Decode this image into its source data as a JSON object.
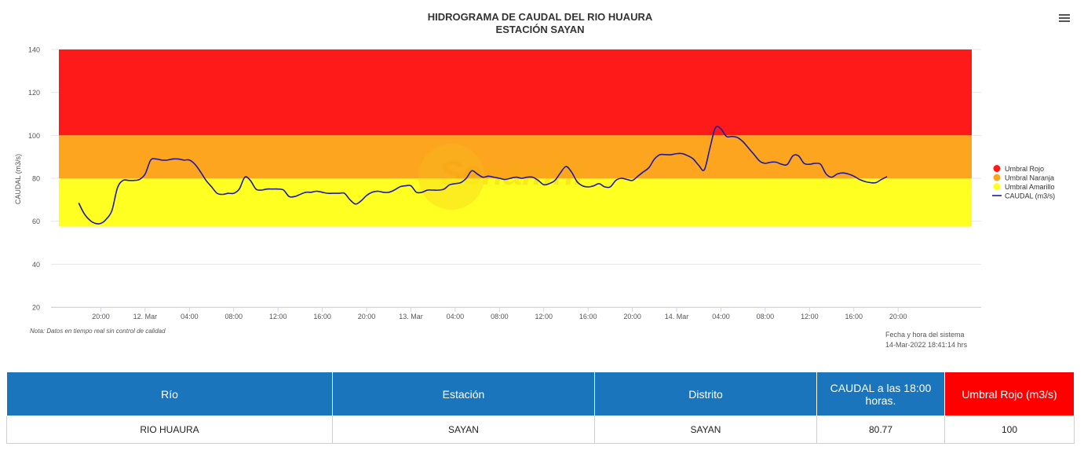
{
  "chart_data": {
    "type": "line",
    "title": "HIDROGRAMA DE CAUDAL DEL RIO HUAURA",
    "subtitle": "ESTACIÓN SAYAN",
    "ylabel": "CAUDAL (m3/s)",
    "ylim": [
      20,
      140
    ],
    "yticks": [
      "20",
      "40",
      "60",
      "80",
      "100",
      "120",
      "140"
    ],
    "xticks": [
      {
        "t": 20,
        "label": "20:00"
      },
      {
        "t": 24,
        "label": "12. Mar"
      },
      {
        "t": 28,
        "label": "04:00"
      },
      {
        "t": 32,
        "label": "08:00"
      },
      {
        "t": 36,
        "label": "12:00"
      },
      {
        "t": 40,
        "label": "16:00"
      },
      {
        "t": 44,
        "label": "20:00"
      },
      {
        "t": 48,
        "label": "13. Mar"
      },
      {
        "t": 52,
        "label": "04:00"
      },
      {
        "t": 56,
        "label": "08:00"
      },
      {
        "t": 60,
        "label": "12:00"
      },
      {
        "t": 64,
        "label": "16:00"
      },
      {
        "t": 68,
        "label": "20:00"
      },
      {
        "t": 72,
        "label": "14. Mar"
      },
      {
        "t": 76,
        "label": "04:00"
      },
      {
        "t": 80,
        "label": "08:00"
      },
      {
        "t": 84,
        "label": "12:00"
      },
      {
        "t": 88,
        "label": "16:00"
      },
      {
        "t": 92,
        "label": "20:00"
      }
    ],
    "x_axis_note": "t = hours since 11 Mar 00:00",
    "bands": [
      {
        "name": "Umbral Rojo",
        "color": "#ff1a1a",
        "from": 100,
        "to": 140
      },
      {
        "name": "Umbral Naranja",
        "color": "#fda51f",
        "from": 80,
        "to": 100
      },
      {
        "name": "Umbral Amarillo",
        "color": "#ffff21",
        "from": 57.5,
        "to": 80
      }
    ],
    "series": [
      {
        "name": "CAUDAL (m3/s)",
        "color": "#1a1aa6",
        "points": [
          [
            18,
            68.5
          ],
          [
            18.5,
            63.5
          ],
          [
            19,
            60.5
          ],
          [
            19.5,
            59
          ],
          [
            20,
            59
          ],
          [
            20.5,
            61
          ],
          [
            21,
            65
          ],
          [
            21.5,
            75.5
          ],
          [
            22,
            79
          ],
          [
            22.5,
            79
          ],
          [
            23,
            79
          ],
          [
            23.5,
            79.5
          ],
          [
            24,
            82
          ],
          [
            24.5,
            88.5
          ],
          [
            25,
            89
          ],
          [
            25.5,
            88.5
          ],
          [
            26,
            88.5
          ],
          [
            26.5,
            89
          ],
          [
            27,
            89
          ],
          [
            27.5,
            88.5
          ],
          [
            28,
            88.5
          ],
          [
            28.5,
            86.5
          ],
          [
            29,
            83
          ],
          [
            29.5,
            79
          ],
          [
            30,
            76
          ],
          [
            30.5,
            73
          ],
          [
            31,
            72.5
          ],
          [
            31.5,
            73
          ],
          [
            32,
            73
          ],
          [
            32.5,
            75
          ],
          [
            33,
            80.5
          ],
          [
            33.5,
            79
          ],
          [
            34,
            75
          ],
          [
            34.5,
            74.5
          ],
          [
            35,
            75
          ],
          [
            35.5,
            75
          ],
          [
            36,
            75
          ],
          [
            36.5,
            74.5
          ],
          [
            37,
            71.5
          ],
          [
            37.5,
            71.5
          ],
          [
            38,
            72.5
          ],
          [
            38.5,
            73.5
          ],
          [
            39,
            73.5
          ],
          [
            39.5,
            74
          ],
          [
            40,
            73.5
          ],
          [
            40.5,
            73
          ],
          [
            41,
            73
          ],
          [
            41.5,
            73
          ],
          [
            42,
            73
          ],
          [
            42.5,
            70
          ],
          [
            43,
            68
          ],
          [
            43.5,
            69.5
          ],
          [
            44,
            72
          ],
          [
            44.5,
            73.5
          ],
          [
            45,
            74
          ],
          [
            45.5,
            73.5
          ],
          [
            46,
            73.5
          ],
          [
            46.5,
            74.5
          ],
          [
            47,
            76
          ],
          [
            47.5,
            76.5
          ],
          [
            48,
            76.5
          ],
          [
            48.5,
            73.5
          ],
          [
            49,
            73.5
          ],
          [
            49.5,
            74.5
          ],
          [
            50,
            74.5
          ],
          [
            50.5,
            74.5
          ],
          [
            51,
            75
          ],
          [
            51.5,
            77
          ],
          [
            52,
            77.5
          ],
          [
            52.5,
            78
          ],
          [
            53,
            80
          ],
          [
            53.5,
            83.5
          ],
          [
            54,
            82
          ],
          [
            54.5,
            80.5
          ],
          [
            55,
            81
          ],
          [
            55.5,
            80.5
          ],
          [
            56,
            80
          ],
          [
            56.5,
            79.5
          ],
          [
            57,
            80
          ],
          [
            57.5,
            80.5
          ],
          [
            58,
            80
          ],
          [
            58.5,
            80.5
          ],
          [
            59,
            80.5
          ],
          [
            59.5,
            79
          ],
          [
            60,
            77
          ],
          [
            60.5,
            77.5
          ],
          [
            61,
            79
          ],
          [
            61.5,
            82.5
          ],
          [
            62,
            85.5
          ],
          [
            62.5,
            83
          ],
          [
            63,
            78.5
          ],
          [
            63.5,
            76.5
          ],
          [
            64,
            76
          ],
          [
            64.5,
            76.5
          ],
          [
            65,
            77.5
          ],
          [
            65.5,
            76
          ],
          [
            66,
            76
          ],
          [
            66.5,
            79
          ],
          [
            67,
            80
          ],
          [
            67.5,
            79.5
          ],
          [
            68,
            79
          ],
          [
            68.5,
            81
          ],
          [
            69,
            83
          ],
          [
            69.5,
            85
          ],
          [
            70,
            89
          ],
          [
            70.5,
            91
          ],
          [
            71,
            91
          ],
          [
            71.5,
            91
          ],
          [
            72,
            91.5
          ],
          [
            72.5,
            91.5
          ],
          [
            73,
            90.5
          ],
          [
            73.5,
            89
          ],
          [
            74,
            86
          ],
          [
            74.5,
            84
          ],
          [
            75,
            94
          ],
          [
            75.5,
            103.5
          ],
          [
            76,
            103
          ],
          [
            76.5,
            99.5
          ],
          [
            77,
            99.5
          ],
          [
            77.5,
            99
          ],
          [
            78,
            97
          ],
          [
            78.5,
            94
          ],
          [
            79,
            91
          ],
          [
            79.5,
            88
          ],
          [
            80,
            87
          ],
          [
            80.5,
            87.5
          ],
          [
            81,
            87.5
          ],
          [
            81.5,
            86.5
          ],
          [
            82,
            86.5
          ],
          [
            82.5,
            90.5
          ],
          [
            83,
            90.5
          ],
          [
            83.5,
            87
          ],
          [
            84,
            86.5
          ],
          [
            84.5,
            87
          ],
          [
            85,
            86.5
          ],
          [
            85.5,
            82
          ],
          [
            86,
            80.5
          ],
          [
            86.5,
            82
          ],
          [
            87,
            82.5
          ],
          [
            87.5,
            82
          ],
          [
            88,
            81
          ],
          [
            88.5,
            79.5
          ],
          [
            89,
            78.5
          ],
          [
            89.5,
            78
          ],
          [
            90,
            78
          ],
          [
            90.5,
            79.5
          ],
          [
            91,
            80.77
          ]
        ]
      }
    ],
    "legend": [
      "Umbral Rojo",
      "Umbral Naranja",
      "Umbral Amarillo",
      "CAUDAL (m3/s)"
    ],
    "legend_position": "right",
    "note": "Nota: Datos en tiempo real sin control de calidad",
    "system_time_label": "Fecha y hora del sistema",
    "system_time_value": "14-Mar-2022 18:41:14 hrs",
    "watermark": "Senamhi"
  },
  "table": {
    "headers": {
      "rio": "Río",
      "estacion": "Estación",
      "distrito": "Distrito",
      "caudal": "CAUDAL a las 18:00 horas.",
      "umbral": "Umbral Rojo (m3/s)"
    },
    "row": {
      "rio": "RIO HUAURA",
      "estacion": "SAYAN",
      "distrito": "SAYAN",
      "caudal": "80.77",
      "umbral": "100"
    }
  }
}
